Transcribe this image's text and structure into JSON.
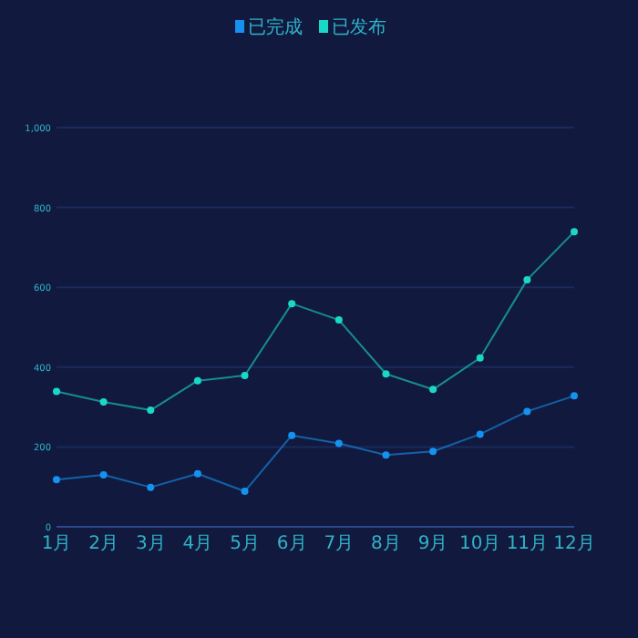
{
  "chart_data": {
    "type": "line",
    "categories": [
      "1月",
      "2月",
      "3月",
      "4月",
      "5月",
      "6月",
      "7月",
      "8月",
      "9月",
      "10月",
      "11月",
      "12月"
    ],
    "series": [
      {
        "name": "已完成",
        "color": "#1591f0",
        "values": [
          118,
          130,
          99,
          133,
          89,
          229,
          209,
          180,
          189,
          232,
          289,
          328
        ]
      },
      {
        "name": "已发布",
        "color": "#1ad8c8",
        "values": [
          339,
          313,
          292,
          366,
          379,
          559,
          518,
          383,
          344,
          423,
          619,
          739
        ]
      }
    ],
    "ylim": [
      0,
      1000
    ],
    "yticks": [
      0,
      200,
      400,
      600,
      800,
      {
        "value": 1000,
        "label": "1,000"
      }
    ],
    "grid": "y",
    "legend": "top",
    "marker": "circle",
    "line_style": "solid"
  }
}
